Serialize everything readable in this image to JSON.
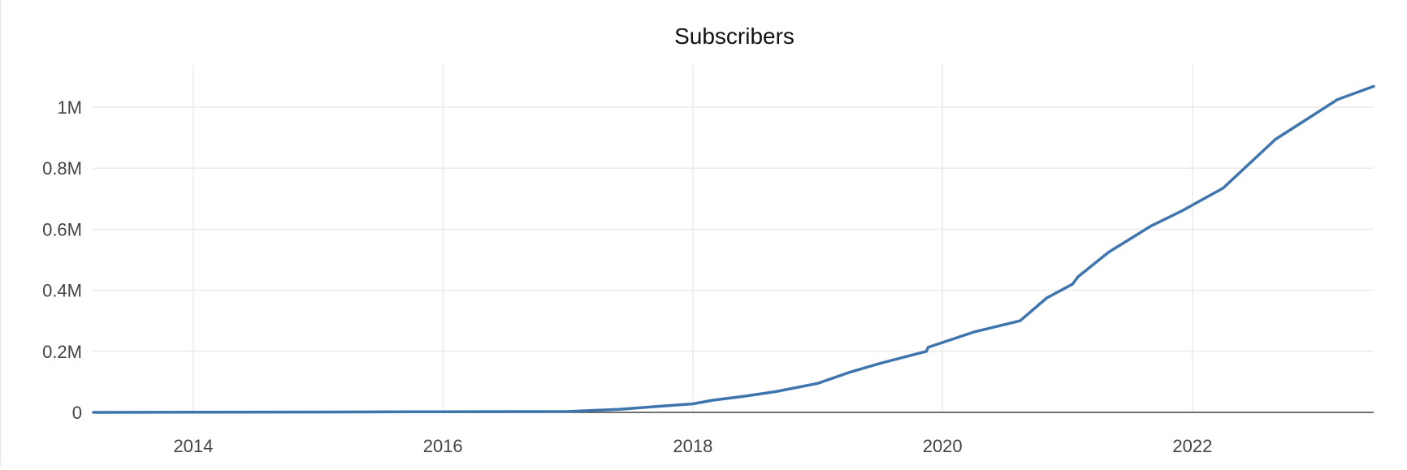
{
  "chart_data": {
    "type": "line",
    "title": "Subscribers",
    "xlabel": "",
    "ylabel": "",
    "x_range": [
      "2013-03-15",
      "2023-06-15"
    ],
    "ylim": [
      0,
      1100000
    ],
    "x_ticks": [
      "2014-01-01",
      "2016-01-01",
      "2018-01-01",
      "2020-01-01",
      "2022-01-01"
    ],
    "x_tick_labels": [
      "2014",
      "2016",
      "2018",
      "2020",
      "2022"
    ],
    "y_ticks": [
      0,
      200000,
      400000,
      600000,
      800000,
      1000000
    ],
    "y_tick_labels": [
      "0",
      "0.2M",
      "0.4M",
      "0.6M",
      "0.8M",
      "1M"
    ],
    "grid": true,
    "legend": "none",
    "colors": {
      "line": "#3f75ad",
      "grid": "#ebebeb",
      "zeroline": "#444444"
    },
    "series": [
      {
        "x": [
          "2013-03-15",
          "2014-01-01",
          "2015-01-01",
          "2016-01-01",
          "2017-01-01",
          "2017-06-01",
          "2017-09-01",
          "2018-01-01",
          "2018-03-01",
          "2018-06-01",
          "2018-09-01",
          "2019-01-01",
          "2019-04-01",
          "2019-07-01",
          "2019-11-15",
          "2019-11-20",
          "2020-04-01",
          "2020-08-15",
          "2020-11-01",
          "2021-01-15",
          "2021-02-01",
          "2021-05-01",
          "2021-09-01",
          "2021-12-01",
          "2022-04-01",
          "2022-09-01",
          "2022-12-01",
          "2023-03-01",
          "2023-06-15"
        ],
        "values": [
          0,
          500,
          1000,
          2000,
          3000,
          10000,
          18000,
          28000,
          40000,
          53000,
          68000,
          95000,
          130000,
          160000,
          200000,
          213000,
          263000,
          300000,
          375000,
          420000,
          445000,
          525000,
          610000,
          660000,
          735000,
          895000,
          960000,
          1025000,
          1068000
        ]
      }
    ]
  }
}
